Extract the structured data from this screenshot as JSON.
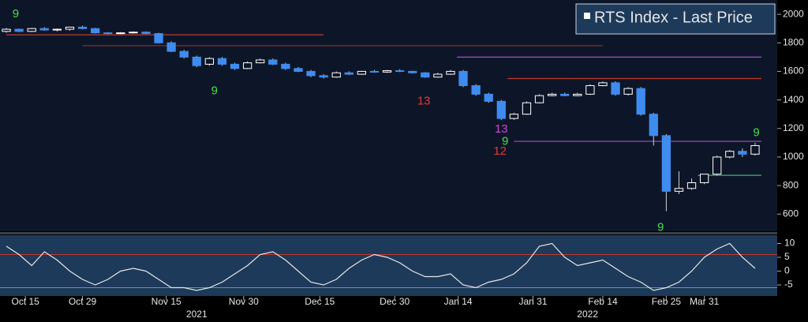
{
  "chart_data": [
    {
      "type": "candlestick",
      "legend": "RTS Index - Last Price",
      "ylim": [
        480,
        2100
      ],
      "yticks": [
        600,
        800,
        1000,
        1200,
        1400,
        1600,
        1800,
        2000
      ],
      "up_color": "#ffffff",
      "down_color": "#3f8cf0",
      "open": [
        1880,
        1895,
        1880,
        1900,
        1890,
        1895,
        1910,
        1900,
        1870,
        1865,
        1870,
        1875,
        1865,
        1800,
        1740,
        1700,
        1650,
        1690,
        1650,
        1620,
        1660,
        1680,
        1650,
        1620,
        1600,
        1570,
        1560,
        1590,
        1580,
        1600,
        1595,
        1605,
        1600,
        1590,
        1560,
        1580,
        1600,
        1500,
        1440,
        1390,
        1270,
        1300,
        1380,
        1430,
        1440,
        1430,
        1440,
        1500,
        1520,
        1440,
        1480,
        1300,
        1150,
        760,
        780,
        820,
        880,
        1000,
        1040,
        1020
      ],
      "high": [
        1905,
        1900,
        1905,
        1910,
        1900,
        1910,
        1920,
        1905,
        1875,
        1875,
        1880,
        1880,
        1870,
        1810,
        1750,
        1710,
        1700,
        1700,
        1660,
        1670,
        1690,
        1690,
        1660,
        1630,
        1610,
        1580,
        1600,
        1600,
        1605,
        1610,
        1610,
        1615,
        1605,
        1595,
        1590,
        1610,
        1610,
        1510,
        1450,
        1400,
        1310,
        1390,
        1440,
        1450,
        1450,
        1450,
        1510,
        1530,
        1530,
        1490,
        1490,
        1310,
        1160,
        900,
        850,
        880,
        1010,
        1050,
        1060,
        1100
      ],
      "low": [
        1870,
        1875,
        1875,
        1885,
        1880,
        1885,
        1895,
        1865,
        1860,
        1860,
        1865,
        1860,
        1795,
        1735,
        1690,
        1630,
        1640,
        1640,
        1610,
        1615,
        1655,
        1645,
        1610,
        1595,
        1560,
        1550,
        1555,
        1575,
        1575,
        1590,
        1590,
        1595,
        1585,
        1555,
        1555,
        1575,
        1490,
        1430,
        1380,
        1260,
        1260,
        1295,
        1375,
        1425,
        1425,
        1425,
        1435,
        1495,
        1430,
        1430,
        1290,
        1080,
        620,
        740,
        770,
        810,
        870,
        990,
        1000,
        1010
      ],
      "close": [
        1895,
        1880,
        1900,
        1890,
        1895,
        1910,
        1900,
        1870,
        1865,
        1870,
        1875,
        1865,
        1800,
        1740,
        1700,
        1640,
        1690,
        1650,
        1620,
        1660,
        1680,
        1650,
        1620,
        1600,
        1570,
        1560,
        1590,
        1580,
        1600,
        1595,
        1605,
        1600,
        1590,
        1560,
        1580,
        1600,
        1500,
        1440,
        1390,
        1270,
        1300,
        1380,
        1430,
        1440,
        1430,
        1440,
        1500,
        1520,
        1440,
        1480,
        1300,
        1150,
        760,
        780,
        820,
        880,
        1000,
        1040,
        1020,
        1080
      ],
      "xticks": [
        {
          "value": 1.5,
          "label": "Oct 15"
        },
        {
          "value": 6,
          "label": "Oct 29"
        },
        {
          "value": 12.6,
          "label": "Nov 15"
        },
        {
          "value": 18.7,
          "label": "Nov 30"
        },
        {
          "value": 24.7,
          "label": "Dec 15"
        },
        {
          "value": 30.6,
          "label": "Dec 30"
        },
        {
          "value": 35.6,
          "label": "Jan 14"
        },
        {
          "value": 41.5,
          "label": "Jan 31"
        },
        {
          "value": 47,
          "label": "Feb 14"
        },
        {
          "value": 52,
          "label": "Feb 25"
        },
        {
          "value": 55,
          "label": "Mar 31"
        }
      ],
      "year_labels": [
        {
          "value": 15,
          "label": "2021"
        },
        {
          "value": 45.8,
          "label": "2022"
        }
      ],
      "levels": [
        {
          "value": 1856,
          "from": 0,
          "to": 25,
          "color": "#c0392b"
        },
        {
          "value": 1780,
          "from": 6,
          "to": 47,
          "color": "#8e2a2a"
        },
        {
          "value": 1700,
          "from": 35.5,
          "to": 59.5,
          "color": "#a64fc4"
        },
        {
          "value": 1550,
          "from": 39.5,
          "to": 59.5,
          "color": "#c0392b"
        },
        {
          "value": 1110,
          "from": 40,
          "to": 59.5,
          "color": "#a64fc4"
        },
        {
          "value": 872,
          "from": 54.5,
          "to": 59.5,
          "color": "#3cb371"
        }
      ],
      "annotations": [
        {
          "label": "9",
          "x": 0.74,
          "y": 2000,
          "color": "#4ade4a"
        },
        {
          "label": "9",
          "x": 16.4,
          "y": 1461,
          "color": "#4ade4a"
        },
        {
          "label": "13",
          "x": 32.9,
          "y": 1389,
          "color": "#e53935"
        },
        {
          "label": "13",
          "x": 39,
          "y": 1194,
          "color": "#d048d0"
        },
        {
          "label": "9",
          "x": 39.3,
          "y": 1106,
          "color": "#4ade4a"
        },
        {
          "label": "12",
          "x": 38.9,
          "y": 1039,
          "color": "#e53935"
        },
        {
          "label": "9",
          "x": 51.55,
          "y": 506,
          "color": "#4ade4a"
        },
        {
          "label": "9",
          "x": 59.1,
          "y": 1167,
          "color": "#4ade4a"
        }
      ]
    },
    {
      "type": "line",
      "color": "#e6e6e6",
      "ylim": [
        -9,
        13
      ],
      "yticks": [
        -5,
        0,
        5,
        10
      ],
      "upper_level": 6,
      "lower_level": -6,
      "upper_color": "#c0392b",
      "lower_color": "#3cb371",
      "values": [
        9,
        6,
        2,
        7,
        4,
        0,
        -3,
        -5,
        -3,
        0,
        1,
        0,
        -3,
        -6,
        -6,
        -7,
        -6,
        -4,
        -1,
        2,
        6,
        7,
        4,
        0,
        -4,
        -5,
        -3,
        1,
        4,
        6,
        5,
        3,
        0,
        -2,
        -2,
        -1,
        -5,
        -6,
        -4,
        -3,
        -1,
        3,
        9,
        10,
        5,
        2,
        3,
        4,
        1,
        -2,
        -4,
        -7,
        -6,
        -4,
        0,
        5,
        8,
        10,
        5,
        1
      ]
    }
  ]
}
